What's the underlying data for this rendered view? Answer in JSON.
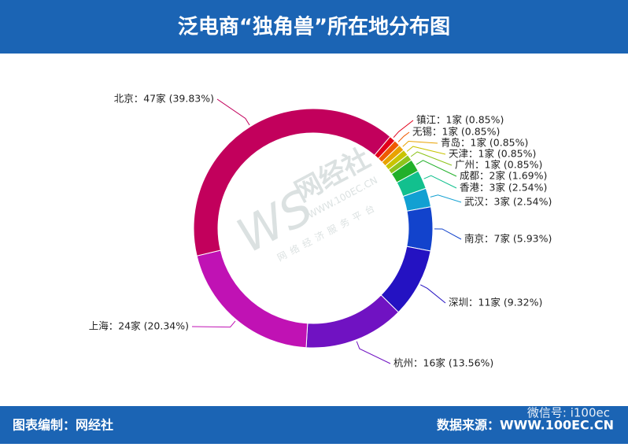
{
  "chart_data": {
    "type": "pie",
    "title": "泛电商“独角兽”所在地分布图",
    "categories": [
      "镇江：1家 (0.85%)",
      "无锡：1家 (0.85%)",
      "青岛：1家 (0.85%)",
      "天津：1家 (0.85%)",
      "广州：1家 (0.85%)",
      "成都：2家 (1.69%)",
      "香港：3家 (2.54%)",
      "武汉：3家 (2.54%)",
      "南京：7家 (5.93%)",
      "深圳：11家 (9.32%)",
      "杭州：16家 (13.56%)",
      "上海：24家 (20.34%)",
      "北京：47家 (39.83%)"
    ],
    "values": [
      1,
      1,
      1,
      1,
      1,
      2,
      3,
      3,
      7,
      11,
      16,
      24,
      47
    ],
    "colors": [
      "#e2001a",
      "#ef5a00",
      "#e9a200",
      "#c9c400",
      "#8ec41c",
      "#22b02a",
      "#12c08e",
      "#12a0d2",
      "#1243cc",
      "#2412c2",
      "#7012c2",
      "#c012b4",
      "#c2005c"
    ],
    "footer_left": "图表编制：网经社",
    "footer_right": "数据来源：WWW.100EC.CN",
    "wechat": "微信号: i100ec",
    "watermark": [
      "网经社",
      "WWW.100EC.CN",
      "网络经济服务平台"
    ]
  }
}
